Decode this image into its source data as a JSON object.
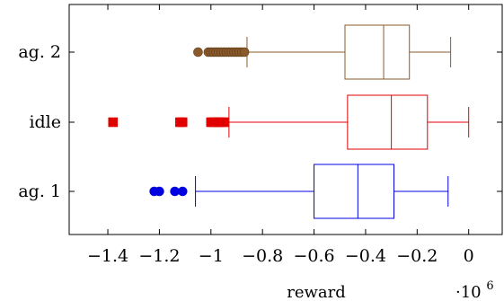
{
  "chart_data": {
    "type": "boxplot",
    "title": "",
    "xlabel": "reward",
    "ylabel": "",
    "x_scale_label": {
      "base": "·10",
      "exponent": "6"
    },
    "xlim": [
      -1.55,
      0.13
    ],
    "xticks": [
      {
        "value": -1.4,
        "label": "−1.4"
      },
      {
        "value": -1.2,
        "label": "−1.2"
      },
      {
        "value": -1.0,
        "label": "−1"
      },
      {
        "value": -0.8,
        "label": "−0.8"
      },
      {
        "value": -0.6,
        "label": "−0.6"
      },
      {
        "value": -0.4,
        "label": "−0.4"
      },
      {
        "value": -0.2,
        "label": "−0.2"
      },
      {
        "value": 0.0,
        "label": "0"
      }
    ],
    "grid": false,
    "categories": [
      "ag. 2",
      "idle",
      "ag. 1"
    ],
    "series": [
      {
        "category": "ag. 2",
        "color": "#8B5A2B",
        "marker": "circle",
        "whisker_low": -0.86,
        "q1": -0.48,
        "median": -0.33,
        "q3": -0.23,
        "whisker_high": -0.07,
        "outliers": [
          -1.05,
          -1.01,
          -1.0,
          -0.99,
          -0.98,
          -0.97,
          -0.96,
          -0.95,
          -0.94,
          -0.93,
          -0.92,
          -0.91,
          -0.9,
          -0.89,
          -0.88,
          -0.87
        ]
      },
      {
        "category": "idle",
        "color": "#E00000",
        "marker": "square",
        "whisker_low": -0.93,
        "q1": -0.47,
        "median": -0.3,
        "q3": -0.16,
        "whisker_high": 0.0,
        "outliers": [
          -1.38,
          -1.12,
          -1.11,
          -1.0,
          -0.99,
          -0.98,
          -0.97,
          -0.96,
          -0.95
        ]
      },
      {
        "category": "ag. 1",
        "color": "#0000E0",
        "marker": "circle",
        "whisker_low": -1.06,
        "q1": -0.6,
        "median": -0.43,
        "q3": -0.29,
        "whisker_high": -0.08,
        "outliers": [
          -1.22,
          -1.2,
          -1.14,
          -1.11
        ]
      }
    ]
  }
}
